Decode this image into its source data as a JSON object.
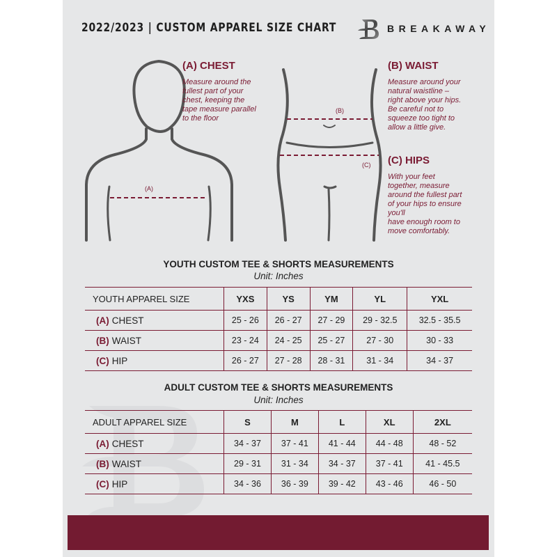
{
  "header": {
    "title": "2022/2023  |  CUSTOM APPAREL SIZE CHART",
    "brand": "BREAKAWAY",
    "brand_logo_letter": "B"
  },
  "colors": {
    "accent": "#7a1b33",
    "band": "#731b31",
    "page": "#e6e7e8"
  },
  "guide": {
    "chest": {
      "title": "(A) CHEST",
      "marker": "(A)",
      "lines": [
        "Measure around the",
        "fullest part of your",
        "chest, keeping the",
        "tape measure parallel",
        "to the floor"
      ]
    },
    "waist": {
      "title": "(B) WAIST",
      "marker": "(B)",
      "lines": [
        "Measure around your",
        "natural waistline –",
        "right above your hips.",
        "Be careful not to",
        "squeeze too tight to",
        "allow a little give."
      ]
    },
    "hips": {
      "title": "(C) HIPS",
      "marker": "(C)",
      "lines": [
        "With your feet",
        "together, measure",
        "around the fullest part",
        "of your hips to ensure",
        "you'll",
        "have enough room to",
        "move comfortably."
      ]
    }
  },
  "youth": {
    "title": "YOUTH CUSTOM TEE & SHORTS MEASUREMENTS",
    "unit": "Unit: Inches",
    "header": "YOUTH APPAREL SIZE",
    "sizes": [
      "YXS",
      "YS",
      "YM",
      "YL",
      "YXL"
    ],
    "rows": [
      {
        "label": "(A)",
        "name": "CHEST",
        "values": [
          "25 - 26",
          "26 - 27",
          "27 - 29",
          "29 - 32.5",
          "32.5 - 35.5"
        ]
      },
      {
        "label": "(B)",
        "name": "WAIST",
        "values": [
          "23 - 24",
          "24 - 25",
          "25 - 27",
          "27 - 30",
          "30 - 33"
        ]
      },
      {
        "label": "(C)",
        "name": "HIP",
        "values": [
          "26 - 27",
          "27 - 28",
          "28 - 31",
          "31 - 34",
          "34 - 37"
        ]
      }
    ]
  },
  "adult": {
    "title": "ADULT CUSTOM TEE & SHORTS MEASUREMENTS",
    "unit": "Unit: Inches",
    "header": "ADULT APPAREL SIZE",
    "sizes": [
      "S",
      "M",
      "L",
      "XL",
      "2XL"
    ],
    "rows": [
      {
        "label": "(A)",
        "name": "CHEST",
        "values": [
          "34 - 37",
          "37 - 41",
          "41 - 44",
          "44 - 48",
          "48 - 52"
        ]
      },
      {
        "label": "(B)",
        "name": "WAIST",
        "values": [
          "29 - 31",
          "31 - 34",
          "34 - 37",
          "37 - 41",
          "41 - 45.5"
        ]
      },
      {
        "label": "(C)",
        "name": "HIP",
        "values": [
          "34 - 36",
          "36 - 39",
          "39 - 42",
          "43 - 46",
          "46 - 50"
        ]
      }
    ]
  }
}
